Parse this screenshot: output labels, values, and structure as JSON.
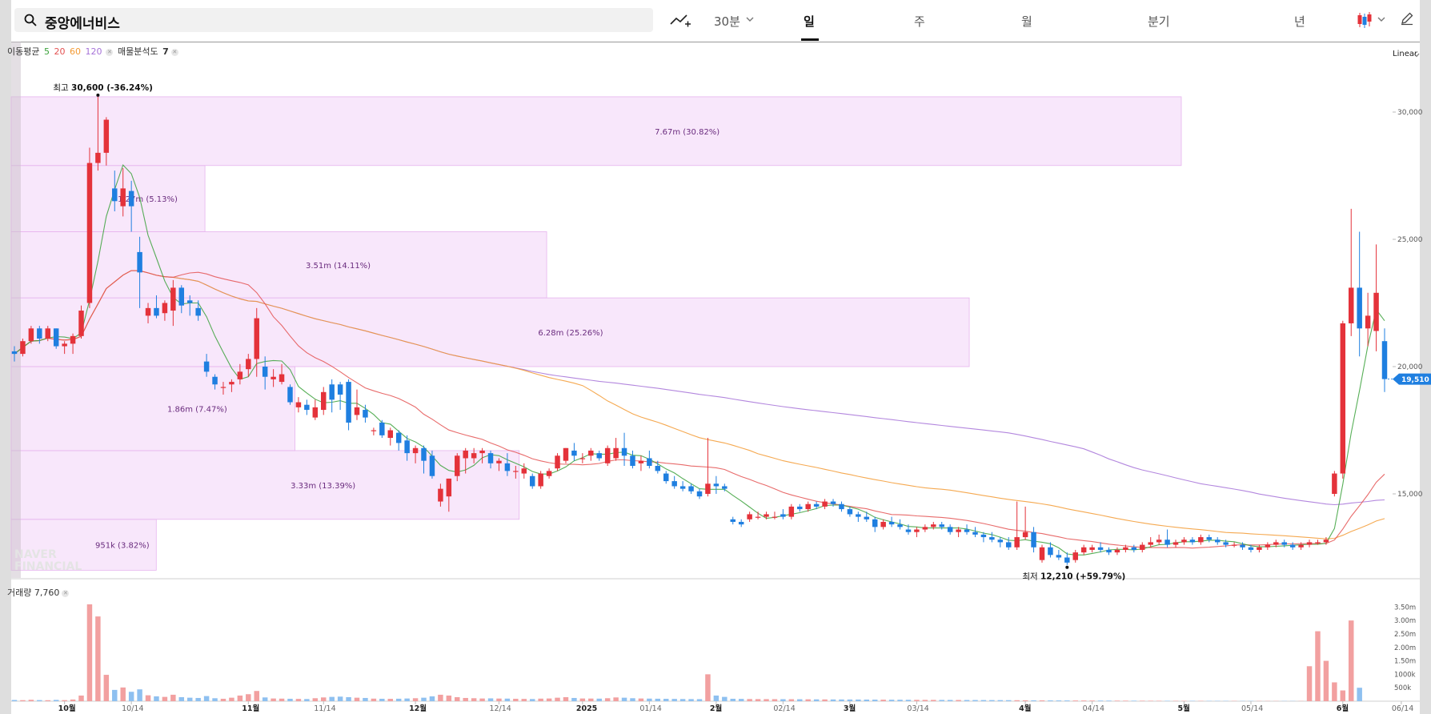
{
  "search": {
    "query": "중앙에너비스"
  },
  "toolbar": {
    "timeframes": [
      {
        "label": "30분",
        "active": false
      },
      {
        "label": "일",
        "active": true
      },
      {
        "label": "주",
        "active": false
      },
      {
        "label": "월",
        "active": false
      },
      {
        "label": "분기",
        "active": false
      },
      {
        "label": "년",
        "active": false
      }
    ],
    "icons": [
      "search-icon",
      "add-indicator-icon",
      "chevron-down-icon",
      "candlestick-type-icon",
      "pencil-icon"
    ]
  },
  "legend": {
    "ma_label": "이동평균",
    "ma_periods": [
      {
        "label": "5",
        "color": "#3aa13a"
      },
      {
        "label": "20",
        "color": "#e45151"
      },
      {
        "label": "60",
        "color": "#f39a33"
      },
      {
        "label": "120",
        "color": "#a672d8"
      }
    ],
    "volume_profile_label": "매물분석도",
    "volume_profile_value": "7",
    "volume_label": "거래량",
    "volume_value": "7,760"
  },
  "scale_label": "Linear",
  "watermark": "NAVER FINANCIAL",
  "colors": {
    "up": "#e4323a",
    "down": "#1f7fe0",
    "profile": "#f3d4f7",
    "vol_up": "#f2a0a0",
    "vol_down": "#8ec0f0"
  },
  "chart_data": {
    "type": "candlestick",
    "price_axis": {
      "ticks": [
        15000,
        20000,
        25000,
        30000
      ],
      "tick_labels": [
        "15,000",
        "20,000",
        "25,000",
        "30,000"
      ],
      "last_price": 19510,
      "last_price_label": "19,510"
    },
    "volume_axis": {
      "ticks": [
        500000,
        1000000,
        1500000,
        2000000,
        2500000,
        3000000,
        3500000
      ],
      "tick_labels": [
        "500k",
        "1000k",
        "1.50m",
        "2.00m",
        "2.50m",
        "3.00m",
        "3.50m"
      ]
    },
    "date_ticks": [
      {
        "label": "10월",
        "month_start": true
      },
      {
        "label": "10/14",
        "month_start": false
      },
      {
        "label": "11월",
        "month_start": true
      },
      {
        "label": "11/14",
        "month_start": false
      },
      {
        "label": "12월",
        "month_start": true
      },
      {
        "label": "12/14",
        "month_start": false
      },
      {
        "label": "2025",
        "month_start": true
      },
      {
        "label": "01/14",
        "month_start": false
      },
      {
        "label": "2월",
        "month_start": true
      },
      {
        "label": "02/14",
        "month_start": false
      },
      {
        "label": "3월",
        "month_start": true
      },
      {
        "label": "03/14",
        "month_start": false
      },
      {
        "label": "4월",
        "month_start": true
      },
      {
        "label": "04/14",
        "month_start": false
      },
      {
        "label": "5월",
        "month_start": true
      },
      {
        "label": "05/14",
        "month_start": false
      },
      {
        "label": "6월",
        "month_start": true
      },
      {
        "label": "06/14",
        "month_start": false
      }
    ],
    "annotations": {
      "high": {
        "prefix": "최고",
        "value": "30,600",
        "change": "(-36.24%)"
      },
      "low": {
        "prefix": "최저",
        "value": "12,210",
        "change": "(+59.79%)"
      }
    },
    "volume_profile": [
      {
        "from": 12000,
        "to": 14000,
        "label": "951k (3.82%)"
      },
      {
        "from": 14000,
        "to": 16700,
        "label": "3.33m (13.39%)"
      },
      {
        "from": 16700,
        "to": 20000,
        "label": "1.86m (7.47%)"
      },
      {
        "from": 20000,
        "to": 22700,
        "label": "6.28m (25.26%)"
      },
      {
        "from": 22700,
        "to": 25300,
        "label": "3.51m (14.11%)"
      },
      {
        "from": 25300,
        "to": 27900,
        "label": "1.27m (5.13%)"
      },
      {
        "from": 27900,
        "to": 30600,
        "label": "7.67m (30.82%)"
      }
    ],
    "candles": [
      [
        20600,
        20800,
        20200,
        20500
      ],
      [
        20500,
        21100,
        20400,
        21000
      ],
      [
        21000,
        21600,
        20900,
        21500
      ],
      [
        21500,
        21600,
        20900,
        21100
      ],
      [
        21100,
        21600,
        21000,
        21500
      ],
      [
        21500,
        21500,
        20700,
        20800
      ],
      [
        20800,
        21000,
        20500,
        20900
      ],
      [
        20900,
        21300,
        20500,
        21200
      ],
      [
        21200,
        22400,
        21100,
        22200
      ],
      [
        22500,
        28600,
        22300,
        28000
      ],
      [
        28000,
        30600,
        27700,
        28400
      ],
      [
        28400,
        29800,
        27900,
        29700
      ],
      [
        27000,
        27700,
        26100,
        26500
      ],
      [
        26300,
        27800,
        25900,
        27000
      ],
      [
        26900,
        27300,
        25300,
        26300
      ],
      [
        24500,
        25100,
        22300,
        23700
      ],
      [
        22000,
        22500,
        21700,
        22300
      ],
      [
        22300,
        22800,
        21900,
        22000
      ],
      [
        22100,
        22600,
        21800,
        22500
      ],
      [
        22200,
        23400,
        21600,
        23100
      ],
      [
        23100,
        23200,
        22100,
        22400
      ],
      [
        22600,
        22800,
        22000,
        22500
      ],
      [
        22300,
        22600,
        21800,
        22000
      ],
      [
        20200,
        20500,
        19600,
        19800
      ],
      [
        19600,
        19700,
        19100,
        19300
      ],
      [
        19200,
        19400,
        18900,
        19200
      ],
      [
        19300,
        19500,
        19000,
        19400
      ],
      [
        19500,
        20100,
        19300,
        19800
      ],
      [
        19900,
        20500,
        19600,
        20300
      ],
      [
        20300,
        22300,
        19600,
        21900
      ],
      [
        20000,
        20400,
        19100,
        19600
      ],
      [
        19500,
        19900,
        19200,
        19600
      ],
      [
        19400,
        20100,
        19300,
        19700
      ],
      [
        19200,
        19300,
        18500,
        18600
      ],
      [
        18400,
        18800,
        18200,
        18600
      ],
      [
        18500,
        18700,
        18100,
        18300
      ],
      [
        18000,
        18700,
        17900,
        18400
      ],
      [
        18300,
        19200,
        18100,
        19000
      ],
      [
        19300,
        19500,
        18200,
        18700
      ],
      [
        19300,
        19400,
        18300,
        18900
      ],
      [
        19400,
        19500,
        17500,
        17800
      ],
      [
        18100,
        19100,
        17900,
        18400
      ],
      [
        18300,
        18500,
        17800,
        18000
      ],
      [
        17500,
        17600,
        17300,
        17500
      ],
      [
        17800,
        17900,
        17200,
        17300
      ],
      [
        17200,
        17600,
        16900,
        17500
      ],
      [
        17400,
        17500,
        16700,
        17000
      ],
      [
        17100,
        17300,
        16300,
        16600
      ],
      [
        16600,
        16900,
        16200,
        16800
      ],
      [
        16800,
        16900,
        15800,
        16300
      ],
      [
        16500,
        16700,
        15600,
        15700
      ],
      [
        14700,
        15400,
        14500,
        15200
      ],
      [
        14900,
        15600,
        14300,
        15600
      ],
      [
        15700,
        16600,
        15500,
        16500
      ],
      [
        16400,
        16800,
        15800,
        16700
      ],
      [
        16400,
        16800,
        16200,
        16600
      ],
      [
        16600,
        16800,
        16200,
        16700
      ],
      [
        16600,
        16700,
        16000,
        16200
      ],
      [
        16200,
        16400,
        15900,
        16300
      ],
      [
        16200,
        16600,
        15700,
        15900
      ],
      [
        15900,
        16100,
        15600,
        15900
      ],
      [
        15800,
        16200,
        15600,
        16000
      ],
      [
        15700,
        15800,
        15200,
        15300
      ],
      [
        15300,
        15900,
        15200,
        15800
      ],
      [
        15700,
        16000,
        15600,
        15900
      ],
      [
        16000,
        16600,
        15900,
        16500
      ],
      [
        16300,
        16800,
        16200,
        16800
      ],
      [
        16700,
        17000,
        16300,
        16500
      ],
      [
        16400,
        16600,
        16200,
        16400
      ],
      [
        16500,
        16800,
        16300,
        16700
      ],
      [
        16600,
        16700,
        16300,
        16400
      ],
      [
        16200,
        16900,
        16100,
        16800
      ],
      [
        16400,
        17200,
        16300,
        16800
      ],
      [
        16800,
        17400,
        16100,
        16500
      ],
      [
        16500,
        16700,
        16000,
        16100
      ],
      [
        16200,
        16500,
        15900,
        16300
      ],
      [
        16400,
        16700,
        16000,
        16100
      ],
      [
        16100,
        16300,
        15800,
        15900
      ],
      [
        15800,
        15900,
        15400,
        15500
      ],
      [
        15500,
        15700,
        15200,
        15300
      ],
      [
        15300,
        15500,
        15100,
        15200
      ],
      [
        15300,
        15400,
        15000,
        15100
      ],
      [
        15100,
        15200,
        14800,
        14900
      ],
      [
        15000,
        17200,
        14900,
        15400
      ],
      [
        15400,
        15700,
        15000,
        15300
      ],
      [
        15300,
        15400,
        15100,
        15200
      ],
      [
        14000,
        14100,
        13800,
        13900
      ],
      [
        13900,
        14000,
        13700,
        13800
      ],
      [
        14000,
        14300,
        13900,
        14200
      ],
      [
        14100,
        14300,
        14000,
        14100
      ],
      [
        14100,
        14300,
        14000,
        14200
      ],
      [
        14100,
        14300,
        14000,
        14100
      ],
      [
        14200,
        14400,
        14000,
        14100
      ],
      [
        14100,
        14600,
        14000,
        14500
      ],
      [
        14500,
        14600,
        14300,
        14400
      ],
      [
        14400,
        14700,
        14300,
        14600
      ],
      [
        14600,
        14700,
        14400,
        14500
      ],
      [
        14500,
        14800,
        14400,
        14700
      ],
      [
        14700,
        14800,
        14500,
        14600
      ],
      [
        14600,
        14700,
        14300,
        14400
      ],
      [
        14400,
        14500,
        14100,
        14200
      ],
      [
        14200,
        14300,
        13900,
        14100
      ],
      [
        14100,
        14300,
        13900,
        14000
      ],
      [
        14000,
        14100,
        13500,
        13700
      ],
      [
        13700,
        14000,
        13600,
        13900
      ],
      [
        13900,
        14100,
        13700,
        13800
      ],
      [
        13800,
        14000,
        13600,
        13700
      ],
      [
        13600,
        13800,
        13400,
        13500
      ],
      [
        13500,
        13700,
        13300,
        13600
      ],
      [
        13600,
        13800,
        13500,
        13700
      ],
      [
        13700,
        13900,
        13600,
        13800
      ],
      [
        13800,
        13900,
        13600,
        13700
      ],
      [
        13700,
        13800,
        13400,
        13500
      ],
      [
        13500,
        13700,
        13300,
        13600
      ],
      [
        13600,
        13800,
        13400,
        13500
      ],
      [
        13500,
        13700,
        13300,
        13400
      ],
      [
        13400,
        13500,
        13100,
        13300
      ],
      [
        13300,
        13500,
        13100,
        13200
      ],
      [
        13200,
        13300,
        12900,
        13100
      ],
      [
        13100,
        13300,
        12800,
        12900
      ],
      [
        12900,
        14700,
        12800,
        13300
      ],
      [
        13300,
        14500,
        13200,
        13500
      ],
      [
        13500,
        13700,
        12700,
        12900
      ],
      [
        12400,
        13000,
        12300,
        12900
      ],
      [
        12900,
        13100,
        12500,
        12600
      ],
      [
        12600,
        12800,
        12400,
        12500
      ],
      [
        12500,
        12700,
        12210,
        12300
      ],
      [
        12400,
        12800,
        12300,
        12700
      ],
      [
        12700,
        13000,
        12600,
        12900
      ],
      [
        12800,
        13000,
        12700,
        12900
      ],
      [
        12900,
        13100,
        12700,
        12800
      ],
      [
        12800,
        12900,
        12600,
        12700
      ],
      [
        12700,
        12900,
        12600,
        12800
      ],
      [
        12800,
        13000,
        12700,
        12900
      ],
      [
        12900,
        13000,
        12700,
        12800
      ],
      [
        12800,
        13100,
        12700,
        13000
      ],
      [
        13000,
        13300,
        12900,
        13100
      ],
      [
        13100,
        13400,
        13000,
        13200
      ],
      [
        13200,
        13600,
        12900,
        13000
      ],
      [
        13000,
        13200,
        12900,
        13100
      ],
      [
        13100,
        13300,
        13000,
        13200
      ],
      [
        13200,
        13300,
        13000,
        13100
      ],
      [
        13100,
        13400,
        13000,
        13300
      ],
      [
        13300,
        13400,
        13100,
        13200
      ],
      [
        13200,
        13300,
        13000,
        13100
      ],
      [
        13100,
        13200,
        12900,
        13000
      ],
      [
        13000,
        13100,
        12900,
        13000
      ],
      [
        13000,
        13100,
        12800,
        12900
      ],
      [
        12900,
        13000,
        12700,
        12800
      ],
      [
        12800,
        13000,
        12700,
        12900
      ],
      [
        12900,
        13100,
        12800,
        13000
      ],
      [
        13000,
        13200,
        12900,
        13100
      ],
      [
        13100,
        13200,
        12900,
        13000
      ],
      [
        13000,
        13100,
        12800,
        12900
      ],
      [
        12900,
        13100,
        12800,
        13000
      ],
      [
        13000,
        13200,
        12900,
        13100
      ],
      [
        13100,
        13200,
        13000,
        13100
      ],
      [
        13100,
        13300,
        13000,
        13200
      ],
      [
        15000,
        15900,
        14900,
        15800
      ],
      [
        15800,
        21800,
        15600,
        21700
      ],
      [
        21700,
        26200,
        21200,
        23100
      ],
      [
        23100,
        25300,
        20400,
        21500
      ],
      [
        21500,
        22900,
        20800,
        22000
      ],
      [
        21400,
        24800,
        20600,
        22900
      ],
      [
        21000,
        21500,
        19000,
        19510
      ]
    ],
    "volume": [
      45000,
      38000,
      52000,
      41000,
      36000,
      48000,
      39000,
      62000,
      210000,
      3600000,
      3150000,
      980000,
      420000,
      510000,
      350000,
      440000,
      220000,
      180000,
      160000,
      240000,
      150000,
      130000,
      120000,
      190000,
      110000,
      90000,
      130000,
      210000,
      260000,
      380000,
      140000,
      100000,
      95000,
      90000,
      85000,
      80000,
      110000,
      140000,
      160000,
      170000,
      150000,
      130000,
      120000,
      95000,
      90000,
      88000,
      92000,
      100000,
      110000,
      130000,
      180000,
      240000,
      210000,
      150000,
      120000,
      110000,
      100000,
      105000,
      98000,
      96000,
      90000,
      85000,
      80000,
      95000,
      100000,
      130000,
      150000,
      120000,
      100000,
      98000,
      95000,
      110000,
      140000,
      130000,
      110000,
      100000,
      96000,
      92000,
      88000,
      85000,
      80000,
      78000,
      76000,
      1000000,
      210000,
      160000,
      90000,
      85000,
      80000,
      78000,
      76000,
      75000,
      74000,
      73000,
      72000,
      70000,
      68000,
      66000,
      65000,
      64000,
      63000,
      62000,
      60000,
      58000,
      56000,
      55000,
      54000,
      52000,
      50000,
      49000,
      48000,
      47000,
      46000,
      45000,
      44000,
      43000,
      42000,
      41000,
      40000,
      38000,
      36000,
      34000,
      32000,
      30000,
      29000,
      28000,
      27000,
      26000,
      25000,
      24000,
      23000,
      22000,
      21000,
      20000,
      19000,
      18000,
      17000,
      16000,
      15000,
      14000,
      14000,
      13000,
      13000,
      12000,
      12000,
      11000,
      11000,
      10000,
      10000,
      9000,
      9000,
      8500,
      8000,
      8000,
      7760,
      1300000,
      2600000,
      1500000,
      700000,
      400000,
      3000000,
      500000
    ]
  }
}
